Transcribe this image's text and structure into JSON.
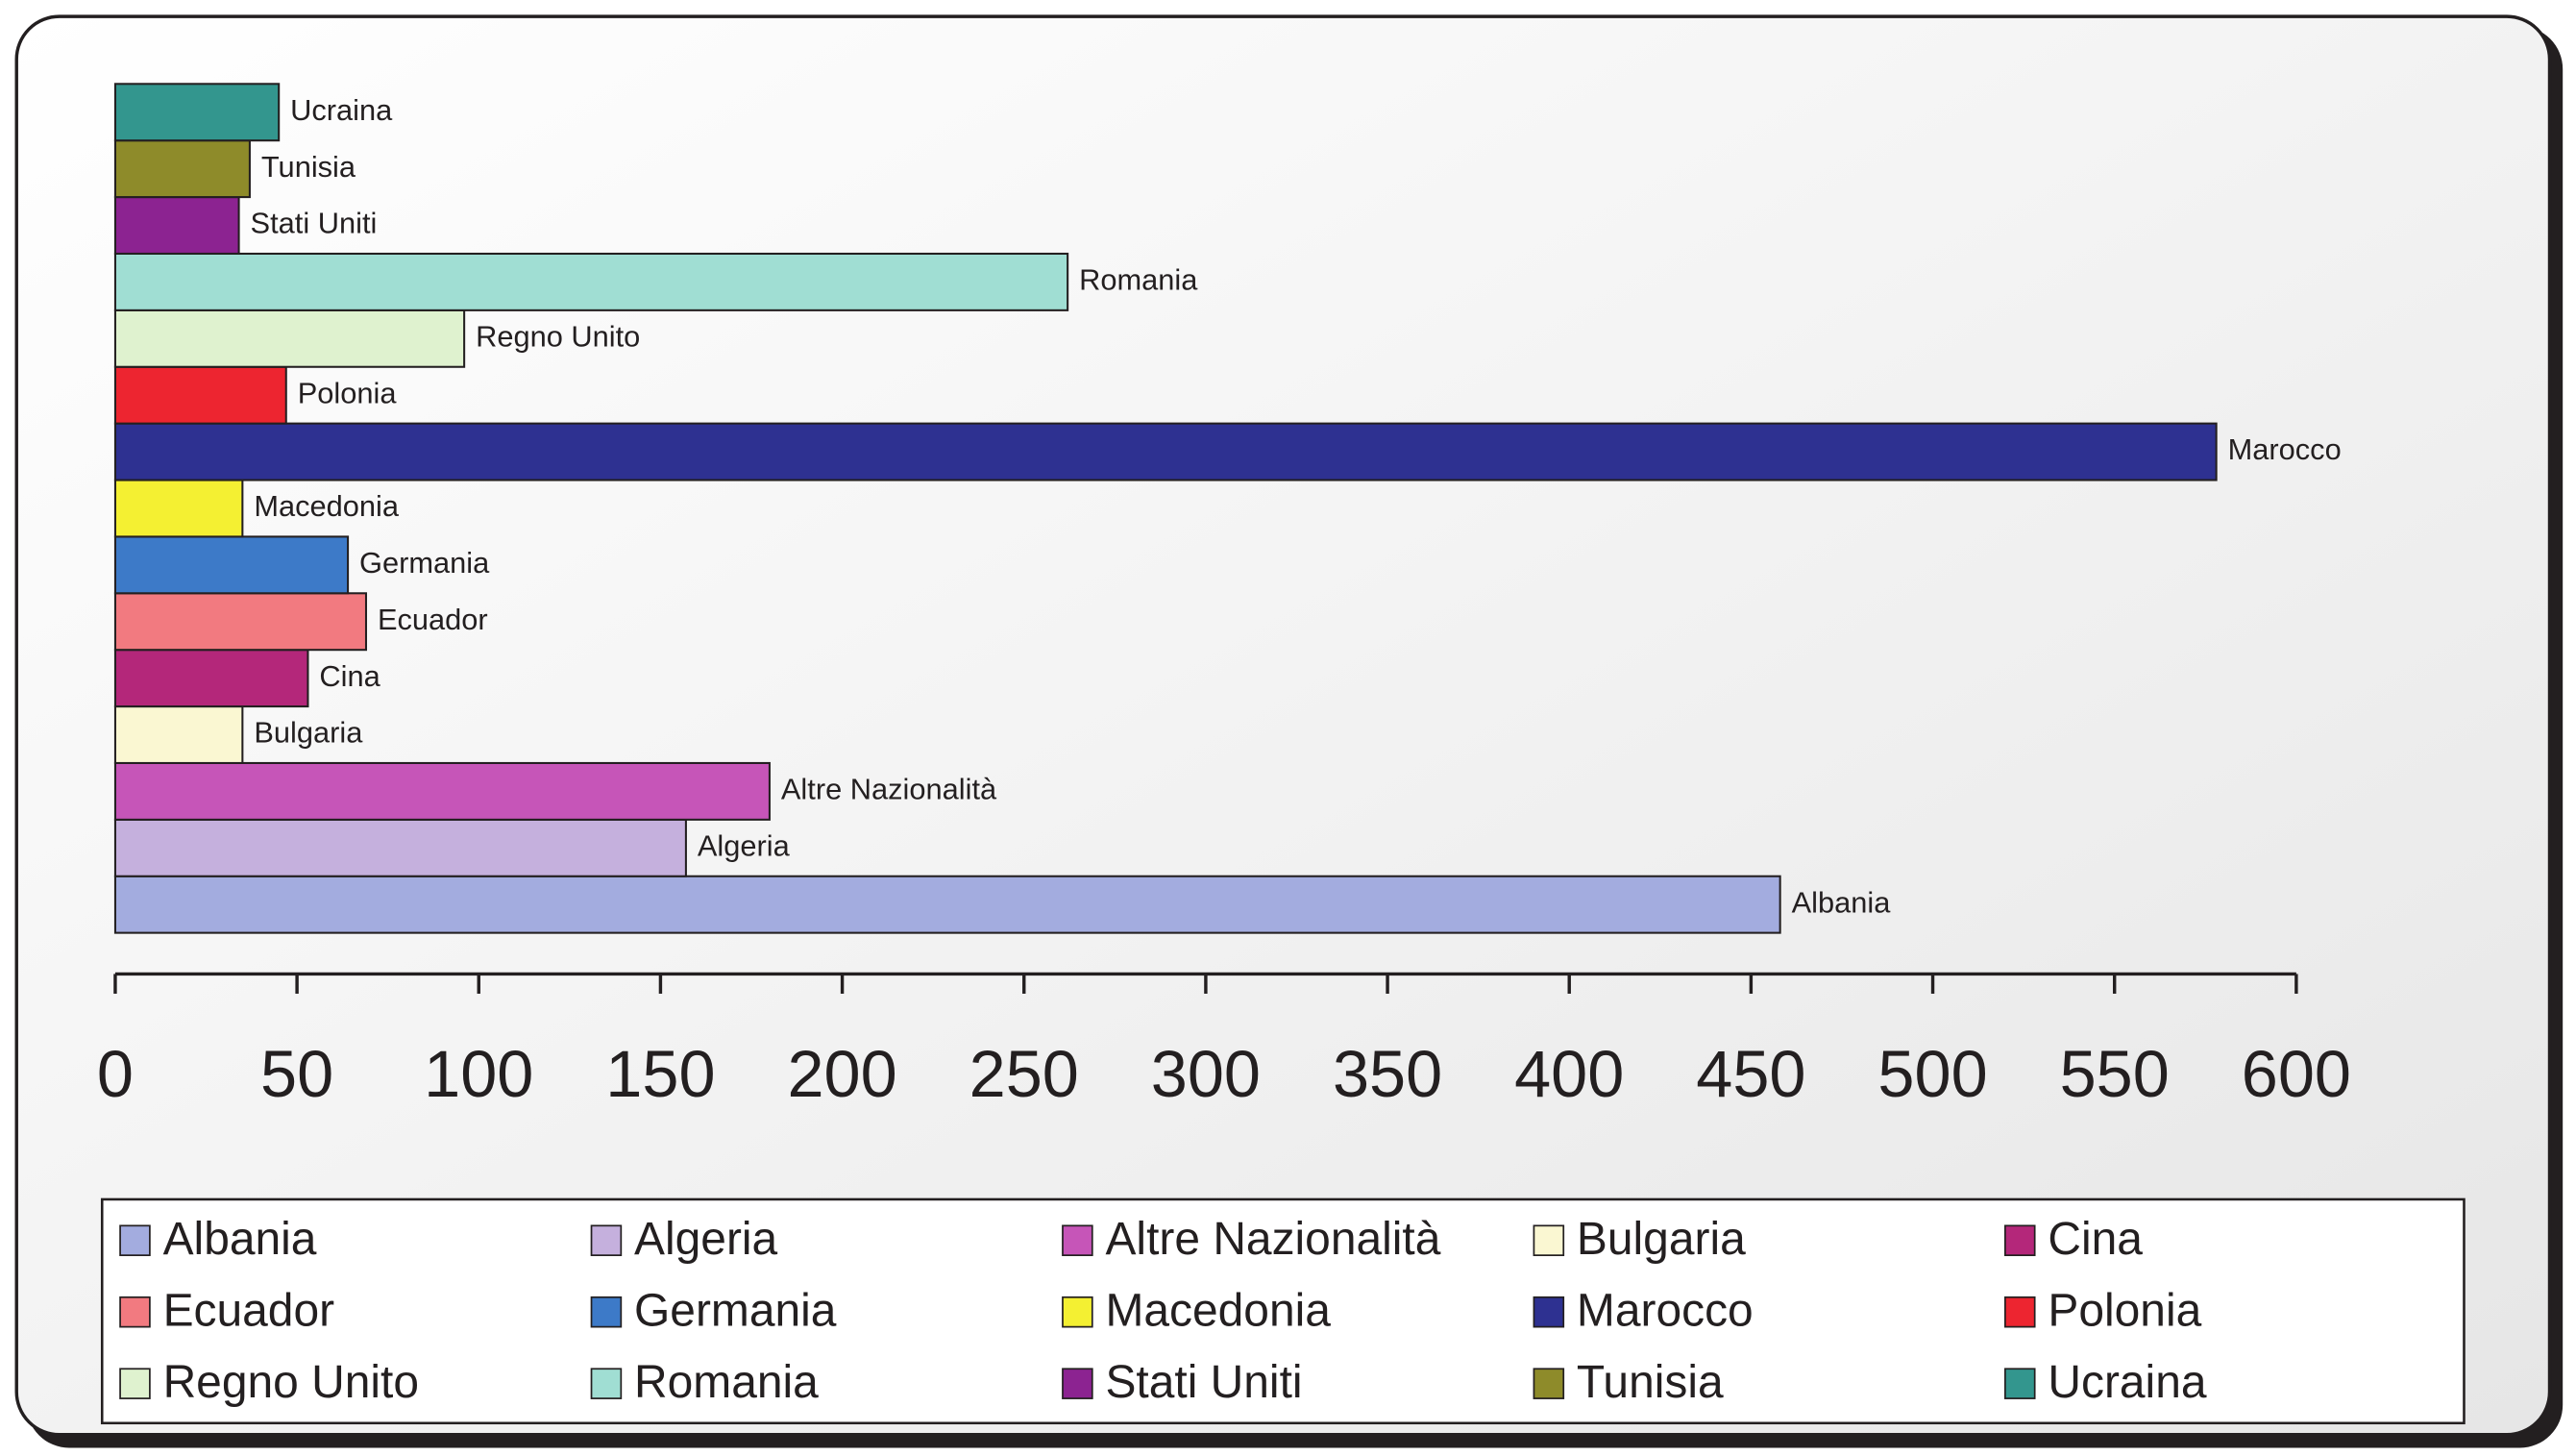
{
  "chart_data": {
    "type": "hbar",
    "categories": [
      "Albania",
      "Algeria",
      "Altre Nazionalità",
      "Bulgaria",
      "Cina",
      "Ecuador",
      "Germania",
      "Macedonia",
      "Marocco",
      "Polonia",
      "Regno Unito",
      "Romania",
      "Stati Uniti",
      "Tunisia",
      "Ucraina"
    ],
    "values": [
      458,
      157,
      180,
      35,
      53,
      69,
      64,
      35,
      578,
      47,
      96,
      262,
      34,
      37,
      45
    ],
    "colors": [
      "#a3acdf",
      "#c5b0dd",
      "#c655b8",
      "#faf7d2",
      "#b4277a",
      "#f27a80",
      "#3d7ac8",
      "#f4f032",
      "#2e3191",
      "#ed2530",
      "#dff2cf",
      "#a0ded3",
      "#8c2391",
      "#8e8b2a",
      "#33968e"
    ],
    "xlim": [
      0,
      600
    ],
    "xticks": [
      0,
      50,
      100,
      150,
      200,
      250,
      300,
      350,
      400,
      450,
      500,
      550,
      600
    ],
    "legend": "bottom"
  }
}
